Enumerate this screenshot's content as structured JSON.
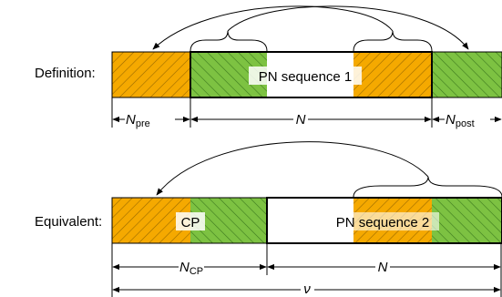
{
  "diagram": {
    "row1": {
      "label": "Definition:",
      "block_text": "PN sequence 1",
      "dims": {
        "pre_symbol": "N",
        "pre_sub": "pre",
        "main_symbol": "N",
        "post_symbol": "N",
        "post_sub": "post"
      }
    },
    "row2": {
      "label": "Equivalent:",
      "cp_text": "CP",
      "block_text": "PN sequence 2",
      "dims": {
        "cp_symbol": "N",
        "cp_sub": "CP",
        "main_symbol": "N",
        "total_symbol": "ν"
      }
    },
    "colors": {
      "orange": "#F5A900",
      "green": "#7DC242",
      "white": "#FFFFFF",
      "border": "#000000"
    }
  }
}
